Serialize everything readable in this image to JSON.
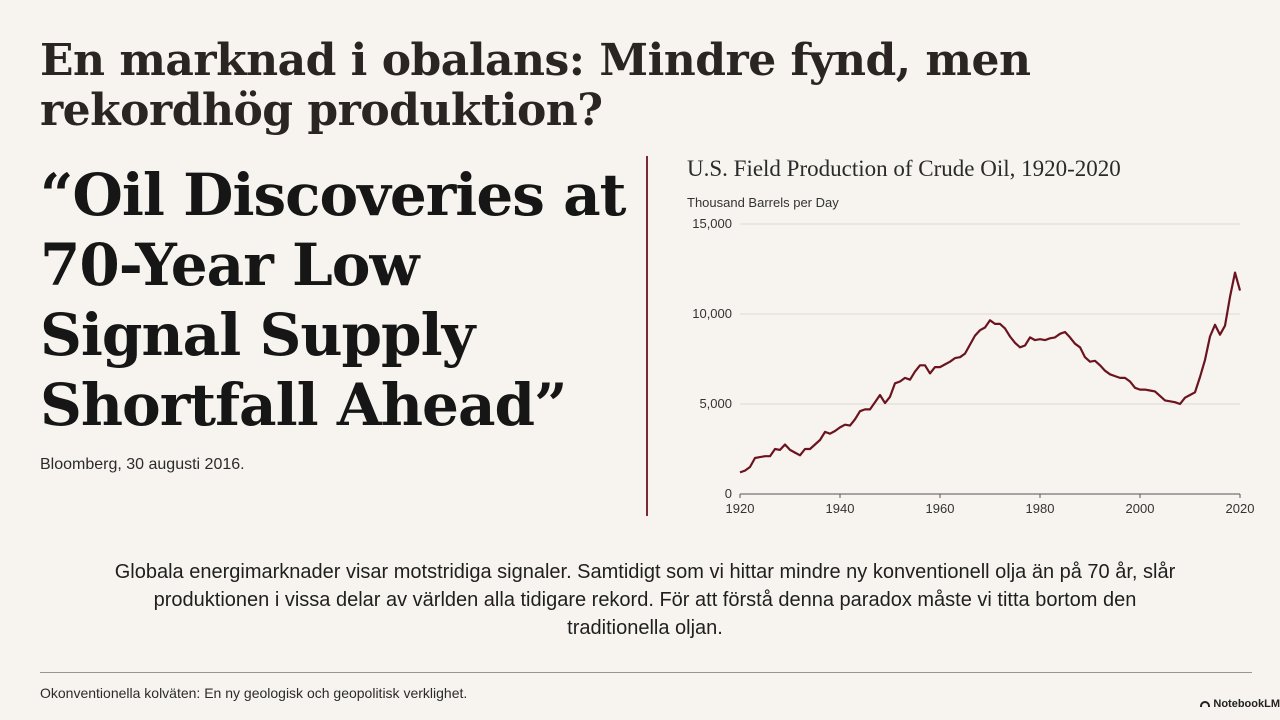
{
  "slide": {
    "title": "En marknad i obalans: Mindre fynd, men rekordhög produktion?",
    "quote": "“Oil Discoveries at 70-Year Low Signal Supply Shortfall Ahead”",
    "source": "Bloomberg, 30 augusti 2016.",
    "body": "Globala energimarknader visar motstridiga signaler. Samtidigt som vi hittar mindre ny konventionell olja än på 70 år, slår produktionen i vissa delar av världen alla tidigare rekord. För att förstå denna paradox måste vi titta bortom den traditionella oljan.",
    "footer": "Okonventionella kolväten: En ny geologisk och geopolitisk verklighet.",
    "brand": "NotebookLM"
  },
  "colors": {
    "line": "#6b1420",
    "accent": "#7a2a34",
    "grid": "#dedad4",
    "background": "#f7f4ef"
  },
  "chart_data": {
    "type": "line",
    "title": "U.S. Field Production of Crude Oil, 1920-2020",
    "ylabel": "Thousand Barrels per Day",
    "xlabel": "",
    "xlim": [
      1920,
      2020
    ],
    "ylim": [
      0,
      15000
    ],
    "xticks": [
      "1920",
      "1940",
      "1960",
      "1980",
      "2000",
      "2020"
    ],
    "yticks": [
      "0",
      "5,000",
      "10,000",
      "15,000"
    ],
    "grid": true,
    "series": [
      {
        "x": [
          1920,
          1921,
          1922,
          1923,
          1924,
          1925,
          1926,
          1927,
          1928,
          1929,
          1930,
          1931,
          1932,
          1933,
          1934,
          1935,
          1936,
          1937,
          1938,
          1939,
          1940,
          1941,
          1942,
          1943,
          1944,
          1945,
          1946,
          1947,
          1948,
          1949,
          1950,
          1951,
          1952,
          1953,
          1954,
          1955,
          1956,
          1957,
          1958,
          1959,
          1960,
          1961,
          1962,
          1963,
          1964,
          1965,
          1966,
          1967,
          1968,
          1969,
          1970,
          1971,
          1972,
          1973,
          1974,
          1975,
          1976,
          1977,
          1978,
          1979,
          1980,
          1981,
          1982,
          1983,
          1984,
          1985,
          1986,
          1987,
          1988,
          1989,
          1990,
          1991,
          1992,
          1993,
          1994,
          1995,
          1996,
          1997,
          1998,
          1999,
          2000,
          2001,
          2002,
          2003,
          2004,
          2005,
          2006,
          2007,
          2008,
          2009,
          2010,
          2011,
          2012,
          2013,
          2014,
          2015,
          2016,
          2017,
          2018,
          2019,
          2020
        ],
        "values": [
          1200,
          1300,
          1500,
          2000,
          2050,
          2100,
          2100,
          2500,
          2450,
          2750,
          2450,
          2300,
          2150,
          2500,
          2500,
          2750,
          3000,
          3450,
          3350,
          3500,
          3700,
          3850,
          3800,
          4150,
          4600,
          4700,
          4700,
          5100,
          5500,
          5050,
          5400,
          6150,
          6250,
          6450,
          6350,
          6800,
          7150,
          7150,
          6700,
          7050,
          7050,
          7200,
          7350,
          7550,
          7600,
          7800,
          8300,
          8800,
          9100,
          9250,
          9650,
          9450,
          9450,
          9200,
          8750,
          8400,
          8150,
          8250,
          8700,
          8550,
          8600,
          8550,
          8650,
          8700,
          8900,
          9000,
          8700,
          8350,
          8150,
          7600,
          7350,
          7400,
          7150,
          6850,
          6650,
          6550,
          6450,
          6450,
          6250,
          5900,
          5800,
          5800,
          5750,
          5700,
          5450,
          5200,
          5150,
          5100,
          5000,
          5350,
          5500,
          5650,
          6500,
          7450,
          8750,
          9400,
          8850,
          9350,
          10950,
          12300,
          11300
        ]
      }
    ]
  }
}
